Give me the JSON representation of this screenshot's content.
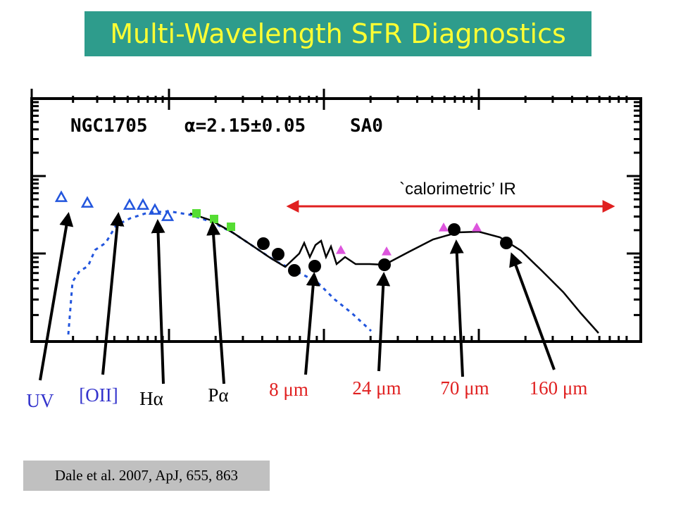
{
  "slide": {
    "title": "Multi-Wavelength SFR Diagnostics",
    "citation": "Dale et al. 2007, ApJ, 655, 863"
  },
  "chart_data": {
    "type": "scatter",
    "panel_label": {
      "galaxy": "NGC1705",
      "alpha": "α=2.15±0.05",
      "morph": "SA0"
    },
    "annotation": "`calorimetric’ IR",
    "colors": {
      "title_bg": "#2e9c8c",
      "title_text": "#ffff33",
      "arrow": "#e02020",
      "stellar_model": "#2255dd",
      "points_ir": "#000000",
      "points_nir": "#55dd33",
      "triangles_uv": "#2255dd",
      "triangles_model": "#dd55dd"
    },
    "band_labels": [
      {
        "key": "uv",
        "text": "UV",
        "color": "#3333cc"
      },
      {
        "key": "oii",
        "text": "[OII]",
        "color": "#3333cc"
      },
      {
        "key": "ha",
        "text": "Hα",
        "color": "#000000"
      },
      {
        "key": "pa",
        "text": "Pα",
        "color": "#000000"
      },
      {
        "key": "m8",
        "text": "8 μm",
        "color": "#e02020"
      },
      {
        "key": "m24",
        "text": "24 μm",
        "color": "#e02020"
      },
      {
        "key": "m70",
        "text": "70 μm",
        "color": "#e02020"
      },
      {
        "key": "m160",
        "text": "160 μm",
        "color": "#e02020"
      }
    ],
    "series": [
      {
        "key": "uv_triangles",
        "values": [
          [
            87,
            280
          ],
          [
            124,
            288
          ],
          [
            184,
            291
          ],
          [
            203,
            291
          ],
          [
            220,
            298
          ],
          [
            238,
            307
          ]
        ]
      },
      {
        "key": "nir_squares",
        "values": [
          [
            279,
            303
          ],
          [
            304,
            311
          ],
          [
            328,
            322
          ]
        ]
      },
      {
        "key": "ir_circles",
        "values": [
          [
            374,
            346
          ],
          [
            395,
            361
          ],
          [
            418,
            384
          ],
          [
            447,
            378
          ],
          [
            546,
            376
          ],
          [
            645,
            326
          ],
          [
            719,
            345
          ]
        ]
      },
      {
        "key": "model_triangles",
        "values": [
          [
            484,
            355
          ],
          [
            549,
            357
          ],
          [
            630,
            323
          ],
          [
            677,
            323
          ]
        ]
      }
    ],
    "curves": {
      "stellar": [
        [
          97,
          475
        ],
        [
          103,
          400
        ],
        [
          113,
          385
        ],
        [
          125,
          378
        ],
        [
          135,
          355
        ],
        [
          150,
          345
        ],
        [
          165,
          320
        ],
        [
          185,
          310
        ],
        [
          210,
          302
        ],
        [
          240,
          300
        ],
        [
          270,
          305
        ],
        [
          300,
          315
        ],
        [
          330,
          330
        ],
        [
          360,
          350
        ],
        [
          390,
          370
        ],
        [
          420,
          385
        ],
        [
          450,
          400
        ],
        [
          475,
          425
        ],
        [
          500,
          445
        ],
        [
          527,
          470
        ]
      ],
      "dust": [
        [
          270,
          303
        ],
        [
          300,
          313
        ],
        [
          330,
          330
        ],
        [
          360,
          350
        ],
        [
          385,
          367
        ],
        [
          405,
          379
        ],
        [
          425,
          360
        ],
        [
          432,
          345
        ],
        [
          440,
          365
        ],
        [
          448,
          348
        ],
        [
          456,
          342
        ],
        [
          463,
          365
        ],
        [
          470,
          350
        ],
        [
          478,
          375
        ],
        [
          490,
          365
        ],
        [
          505,
          375
        ],
        [
          525,
          375
        ],
        [
          546,
          376
        ],
        [
          580,
          358
        ],
        [
          615,
          340
        ],
        [
          650,
          330
        ],
        [
          680,
          329
        ],
        [
          710,
          337
        ],
        [
          740,
          356
        ],
        [
          770,
          385
        ],
        [
          800,
          415
        ],
        [
          825,
          445
        ],
        [
          850,
          473
        ]
      ]
    },
    "xlim": [
      45,
      910
    ],
    "ylim": [
      140,
      485
    ]
  }
}
